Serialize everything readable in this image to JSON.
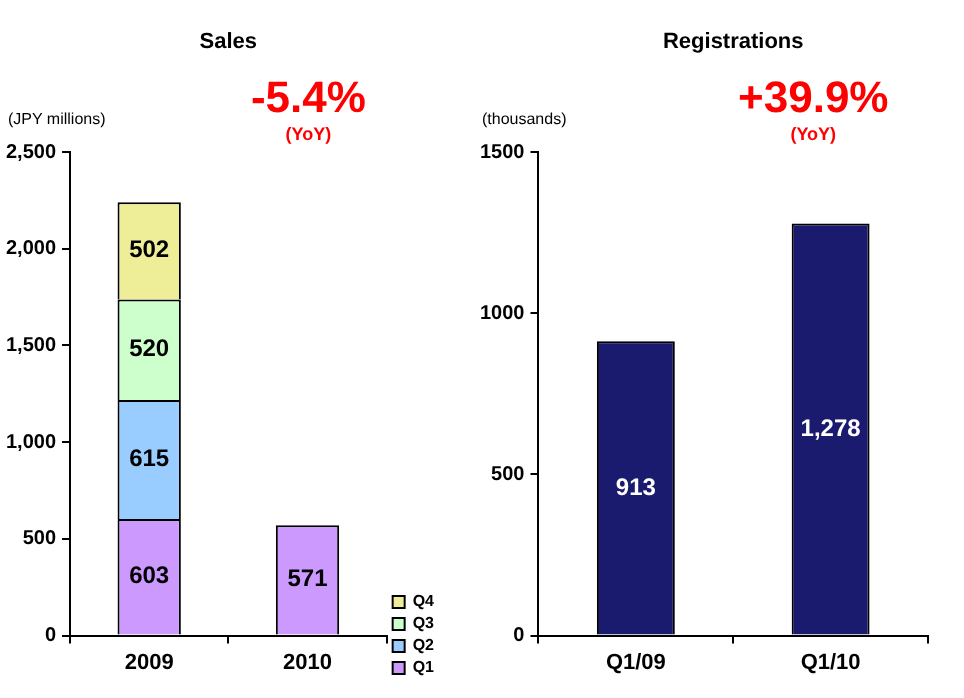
{
  "chart_data": [
    {
      "type": "bar",
      "title": "Sales",
      "ylabel": "(JPY millions)",
      "annotations": [
        "-5.4%",
        "(YoY)"
      ],
      "categories": [
        "2009",
        "2010"
      ],
      "stacked": true,
      "series": [
        {
          "name": "Q1",
          "color": "#cc99ff",
          "values": [
            603,
            571
          ]
        },
        {
          "name": "Q2",
          "color": "#99ccff",
          "values": [
            615,
            null
          ]
        },
        {
          "name": "Q3",
          "color": "#ccffcc",
          "values": [
            520,
            null
          ]
        },
        {
          "name": "Q4",
          "color": "#eeee99",
          "values": [
            502,
            null
          ]
        }
      ],
      "ylim": [
        0,
        2500
      ],
      "yticks": [
        0,
        500,
        {
          "value": 1000,
          "label": "1,000"
        },
        {
          "value": 1500,
          "label": "1,500"
        },
        {
          "value": 2000,
          "label": "2,000"
        },
        {
          "value": 2500,
          "label": "2,500"
        }
      ],
      "grid": false,
      "legend": "bottom right",
      "data_labels": true
    },
    {
      "type": "bar",
      "title": "Registrations",
      "ylabel": "(thousands)",
      "annotations": [
        "+39.9%",
        "(YoY)"
      ],
      "categories": [
        "Q1/09",
        "Q1/10"
      ],
      "values": [
        913,
        1278
      ],
      "value_labels": [
        "913",
        "1,278"
      ],
      "color": "#1a1a6e",
      "ylim": [
        0,
        1500
      ],
      "yticks": [
        0,
        500,
        1000,
        1500
      ],
      "grid": false
    }
  ]
}
